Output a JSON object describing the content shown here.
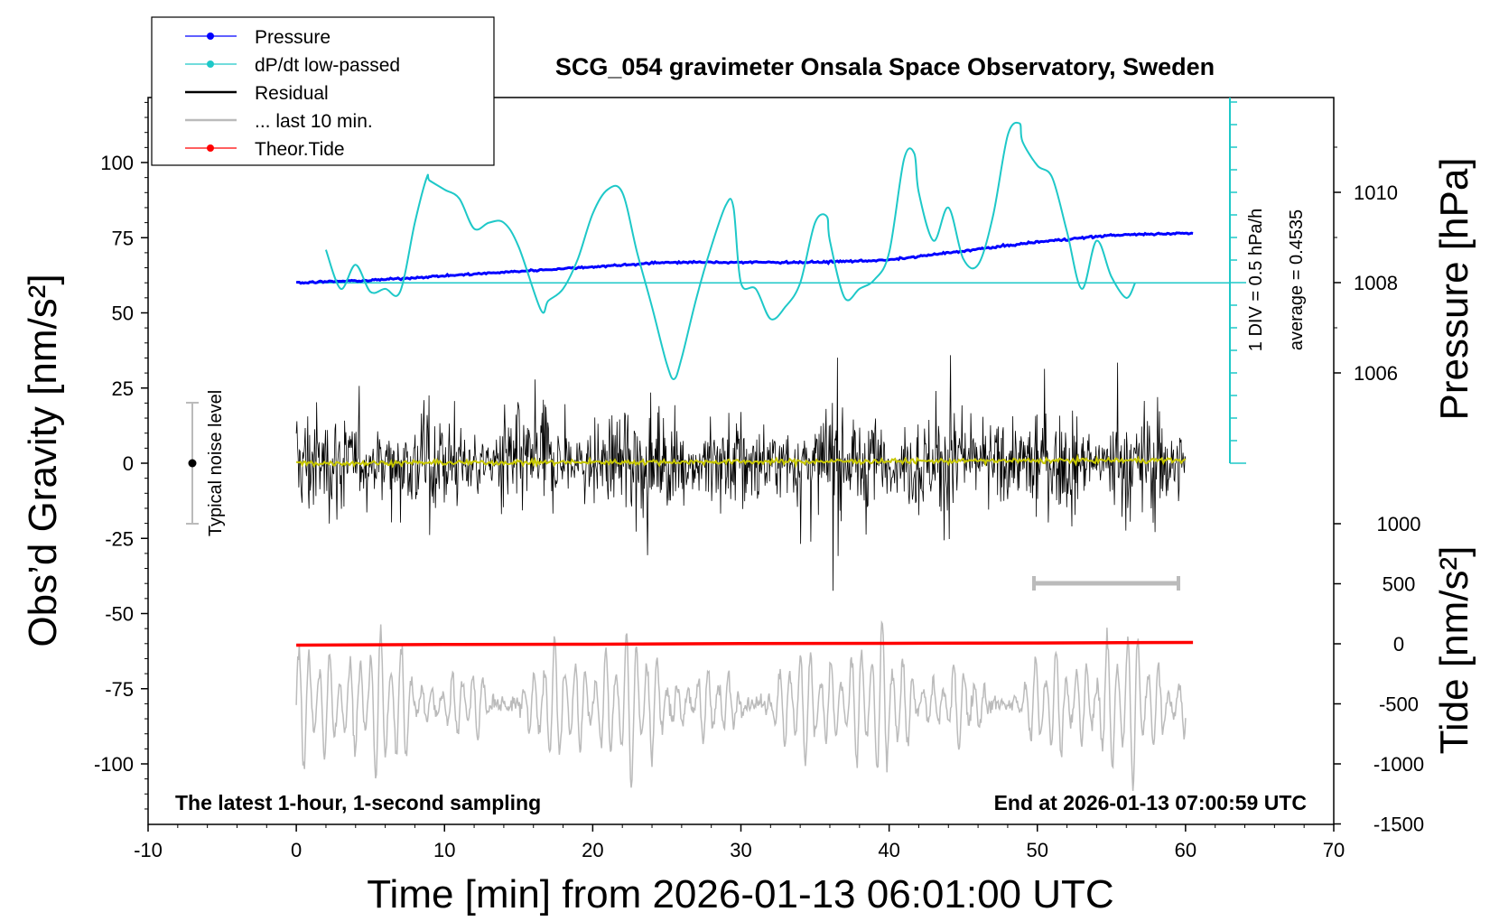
{
  "chart_data": {
    "type": "line",
    "title": "SCG_054 gravimeter Onsala Space Observatory, Sweden",
    "xlabel": "Time [min] from 2026-01-13 06:01:00 UTC",
    "ylabel_left": "Obs’d Gravity [nm/s²]",
    "ylabel_right_pressure": "Pressure [hPa]",
    "ylabel_right_tide": "Tide [nm/s²]",
    "xlim": [
      -10,
      70
    ],
    "ylim_left": [
      -120,
      122
    ],
    "x_ticks": [
      "-10",
      "0",
      "10",
      "20",
      "30",
      "40",
      "50",
      "60",
      "70"
    ],
    "left_ticks": [
      "100",
      "75",
      "50",
      "25",
      "0",
      "-25",
      "-50",
      "-75",
      "-100"
    ],
    "pressure_ticks": [
      "1010",
      "1008",
      "1006"
    ],
    "tide_ticks": [
      "1000",
      "500",
      "0",
      "-500",
      "-1000",
      "-1500"
    ],
    "legend_placement": "top-left",
    "legend": [
      {
        "label": "Pressure",
        "color": "#0000ff",
        "style": "line-dot"
      },
      {
        "label": "dP/dt low-passed",
        "color": "#1ec8c8",
        "style": "line-dot"
      },
      {
        "label": "Residual",
        "color": "#000000",
        "style": "line"
      },
      {
        "label": "... last 10 min.",
        "color": "#bbbbbb",
        "style": "line"
      },
      {
        "label": "Theor.Tide",
        "color": "#ff0000",
        "style": "line-dot"
      }
    ],
    "annotations": {
      "bottom_left": "The latest 1-hour, 1-second sampling",
      "bottom_right": "End at 2026-01-13 07:00:59 UTC",
      "noise": "Typical noise level",
      "div": "1 DIV = 0.5 hPa/h",
      "average": "average = 0.4535"
    },
    "series": [
      {
        "name": "Pressure",
        "unit": "hPa",
        "color": "#0000ff",
        "x": [
          0,
          5,
          10,
          15,
          20,
          25,
          30,
          35,
          40,
          45,
          50,
          55,
          60.5
        ],
        "values": [
          1008.0,
          1008.05,
          1008.15,
          1008.25,
          1008.35,
          1008.45,
          1008.45,
          1008.45,
          1008.5,
          1008.7,
          1008.9,
          1009.05,
          1009.1
        ]
      },
      {
        "name": "dP/dt low-passed",
        "unit": "hPa/h",
        "color": "#1ec8c8",
        "baseline_y": 60,
        "x": [
          2,
          3,
          4,
          5,
          6,
          7,
          8,
          8.8,
          9,
          10,
          11,
          12,
          13,
          14,
          15,
          16.5,
          17,
          18,
          19,
          20,
          21,
          22,
          23,
          24,
          25,
          25.5,
          26,
          27,
          28,
          29,
          29.5,
          30,
          31,
          32,
          33,
          34,
          35,
          35.8,
          36,
          37,
          38,
          39,
          40,
          41,
          41.7,
          42,
          43,
          44,
          45,
          46,
          47,
          48,
          48.8,
          49,
          50,
          51,
          52,
          53,
          54,
          55,
          56,
          56.6
        ],
        "values": [
          71,
          58,
          66,
          57,
          58,
          57,
          80,
          95,
          94,
          91,
          88,
          78,
          80,
          80,
          72,
          51,
          54,
          58,
          68,
          83,
          91,
          90,
          70,
          52,
          33,
          28,
          35,
          55,
          72,
          86,
          85,
          60,
          58,
          48,
          52,
          60,
          80,
          82,
          74,
          55,
          58,
          61,
          70,
          101,
          103,
          90,
          74,
          85,
          68,
          66,
          82,
          109,
          113,
          107,
          99,
          95,
          77,
          58,
          74,
          62,
          55,
          60
        ]
      },
      {
        "name": "Residual",
        "unit": "nm/s²",
        "color": "#000000",
        "x_range": [
          0,
          60
        ],
        "amplitude": "±43 (about ±20 typical)",
        "center": 0
      },
      {
        "name": "Residual (low-passed)",
        "unit": "nm/s²",
        "color": "#c8c800",
        "x": [
          0,
          10,
          20,
          30,
          40,
          50,
          60
        ],
        "values": [
          0,
          0,
          0,
          0.5,
          0.5,
          1,
          1
        ]
      },
      {
        "name": "... last 10 min.",
        "unit": "nm/s²",
        "color": "#bbbbbb",
        "x_range": [
          0,
          60
        ],
        "center": -80,
        "amplitude": "-110 to -48"
      },
      {
        "name": "Theor.Tide",
        "unit": "nm/s²",
        "color": "#ff0000",
        "x": [
          0,
          10,
          20,
          30,
          40,
          50,
          60.5
        ],
        "values": [
          -60.5,
          -60.3,
          -60.2,
          -60,
          -59.9,
          -59.8,
          -59.6
        ]
      }
    ],
    "last10_bar": {
      "x": [
        50,
        60
      ],
      "y": -40
    },
    "noise_level": {
      "x": -7,
      "y": 0,
      "error": 20
    }
  }
}
